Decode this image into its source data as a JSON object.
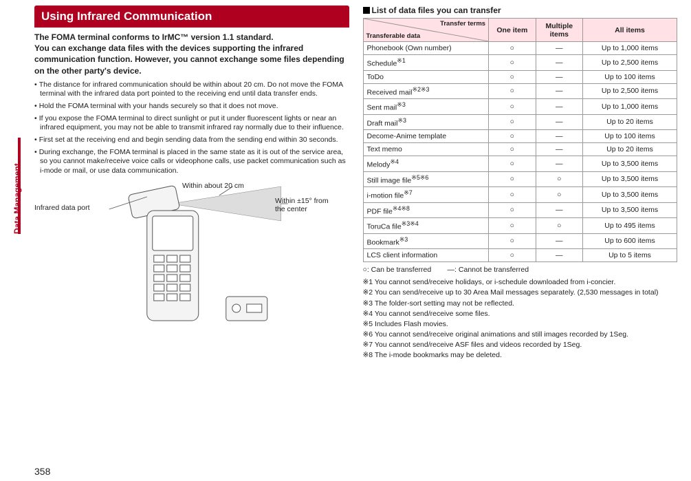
{
  "sideTab": "Data Management",
  "pageNumber": "358",
  "header": "Using Infrared Communication",
  "intro": "The FOMA terminal conforms to IrMC™ version 1.1 standard.\nYou can exchange data files with the devices supporting the infrared communication function. However, you cannot exchange some files depending on the other party's device.",
  "bullets": [
    "The distance for infrared communication should be within about 20 cm. Do not move the FOMA terminal with the infrared data port pointed to the receiving end until data transfer ends.",
    "Hold the FOMA terminal with your hands securely so that it does not move.",
    "If you expose the FOMA terminal to direct sunlight or put it under fluorescent lights or near an infrared equipment, you may not be able to transmit infrared ray normally due to their influence.",
    "First set at the receiving end and begin sending data from the sending end within 30 seconds.",
    "During exchange, the FOMA terminal is placed in the same state as it is out of the service area, so you cannot make/receive voice calls or videophone calls, use packet communication such as i-mode or mail, or use data communication."
  ],
  "diagramLabels": {
    "port": "Infrared data port",
    "distance": "Within about 20 cm",
    "angle": "Within ±15° from the center"
  },
  "rightHeader": "List of data files you can transfer",
  "tableHeaders": {
    "diagTop": "Transfer terms",
    "diagBottom": "Transferable data",
    "one": "One item",
    "multi": "Multiple items",
    "all": "All items"
  },
  "rows": [
    {
      "name": "Phonebook (Own number)",
      "ref": "",
      "one": "○",
      "multi": "—",
      "all": "Up to 1,000 items"
    },
    {
      "name": "Schedule",
      "ref": "※1",
      "one": "○",
      "multi": "—",
      "all": "Up to 2,500 items"
    },
    {
      "name": "ToDo",
      "ref": "",
      "one": "○",
      "multi": "—",
      "all": "Up to 100 items"
    },
    {
      "name": "Received mail",
      "ref": "※2※3",
      "one": "○",
      "multi": "—",
      "all": "Up to 2,500 items"
    },
    {
      "name": "Sent mail",
      "ref": "※3",
      "one": "○",
      "multi": "—",
      "all": "Up to 1,000 items"
    },
    {
      "name": "Draft mail",
      "ref": "※3",
      "one": "○",
      "multi": "—",
      "all": "Up to 20 items"
    },
    {
      "name": "Decome-Anime template",
      "ref": "",
      "one": "○",
      "multi": "—",
      "all": "Up to 100 items"
    },
    {
      "name": "Text memo",
      "ref": "",
      "one": "○",
      "multi": "—",
      "all": "Up to 20 items"
    },
    {
      "name": "Melody",
      "ref": "※4",
      "one": "○",
      "multi": "—",
      "all": "Up to 3,500 items"
    },
    {
      "name": "Still image file",
      "ref": "※5※6",
      "one": "○",
      "multi": "○",
      "all": "Up to 3,500 items"
    },
    {
      "name": "i-motion file",
      "ref": "※7",
      "one": "○",
      "multi": "○",
      "all": "Up to 3,500 items"
    },
    {
      "name": "PDF file",
      "ref": "※4※8",
      "one": "○",
      "multi": "—",
      "all": "Up to 3,500 items"
    },
    {
      "name": "ToruCa file",
      "ref": "※3※4",
      "one": "○",
      "multi": "○",
      "all": "Up to 495 items"
    },
    {
      "name": "Bookmark",
      "ref": "※3",
      "one": "○",
      "multi": "—",
      "all": "Up to 600 items"
    },
    {
      "name": "LCS client information",
      "ref": "",
      "one": "○",
      "multi": "—",
      "all": "Up to 5 items"
    }
  ],
  "legend": "○: Can be transferred        —: Cannot be transferred",
  "notes": [
    "※1 You cannot send/receive holidays, or i-schedule downloaded from i-concier.",
    "※2 You can send/receive up to 30 Area Mail messages separately. (2,530 messages in total)",
    "※3 The folder-sort setting may not be reflected.",
    "※4 You cannot send/receive some files.",
    "※5 Includes Flash movies.",
    "※6 You cannot send/receive original animations and still images recorded by 1Seg.",
    "※7 You cannot send/receive ASF files and videos recorded by 1Seg.",
    "※8 The i-mode bookmarks may be deleted."
  ],
  "colors": {
    "accent": "#b00020",
    "headerBg": "#ffe1e6",
    "border": "#999999"
  }
}
